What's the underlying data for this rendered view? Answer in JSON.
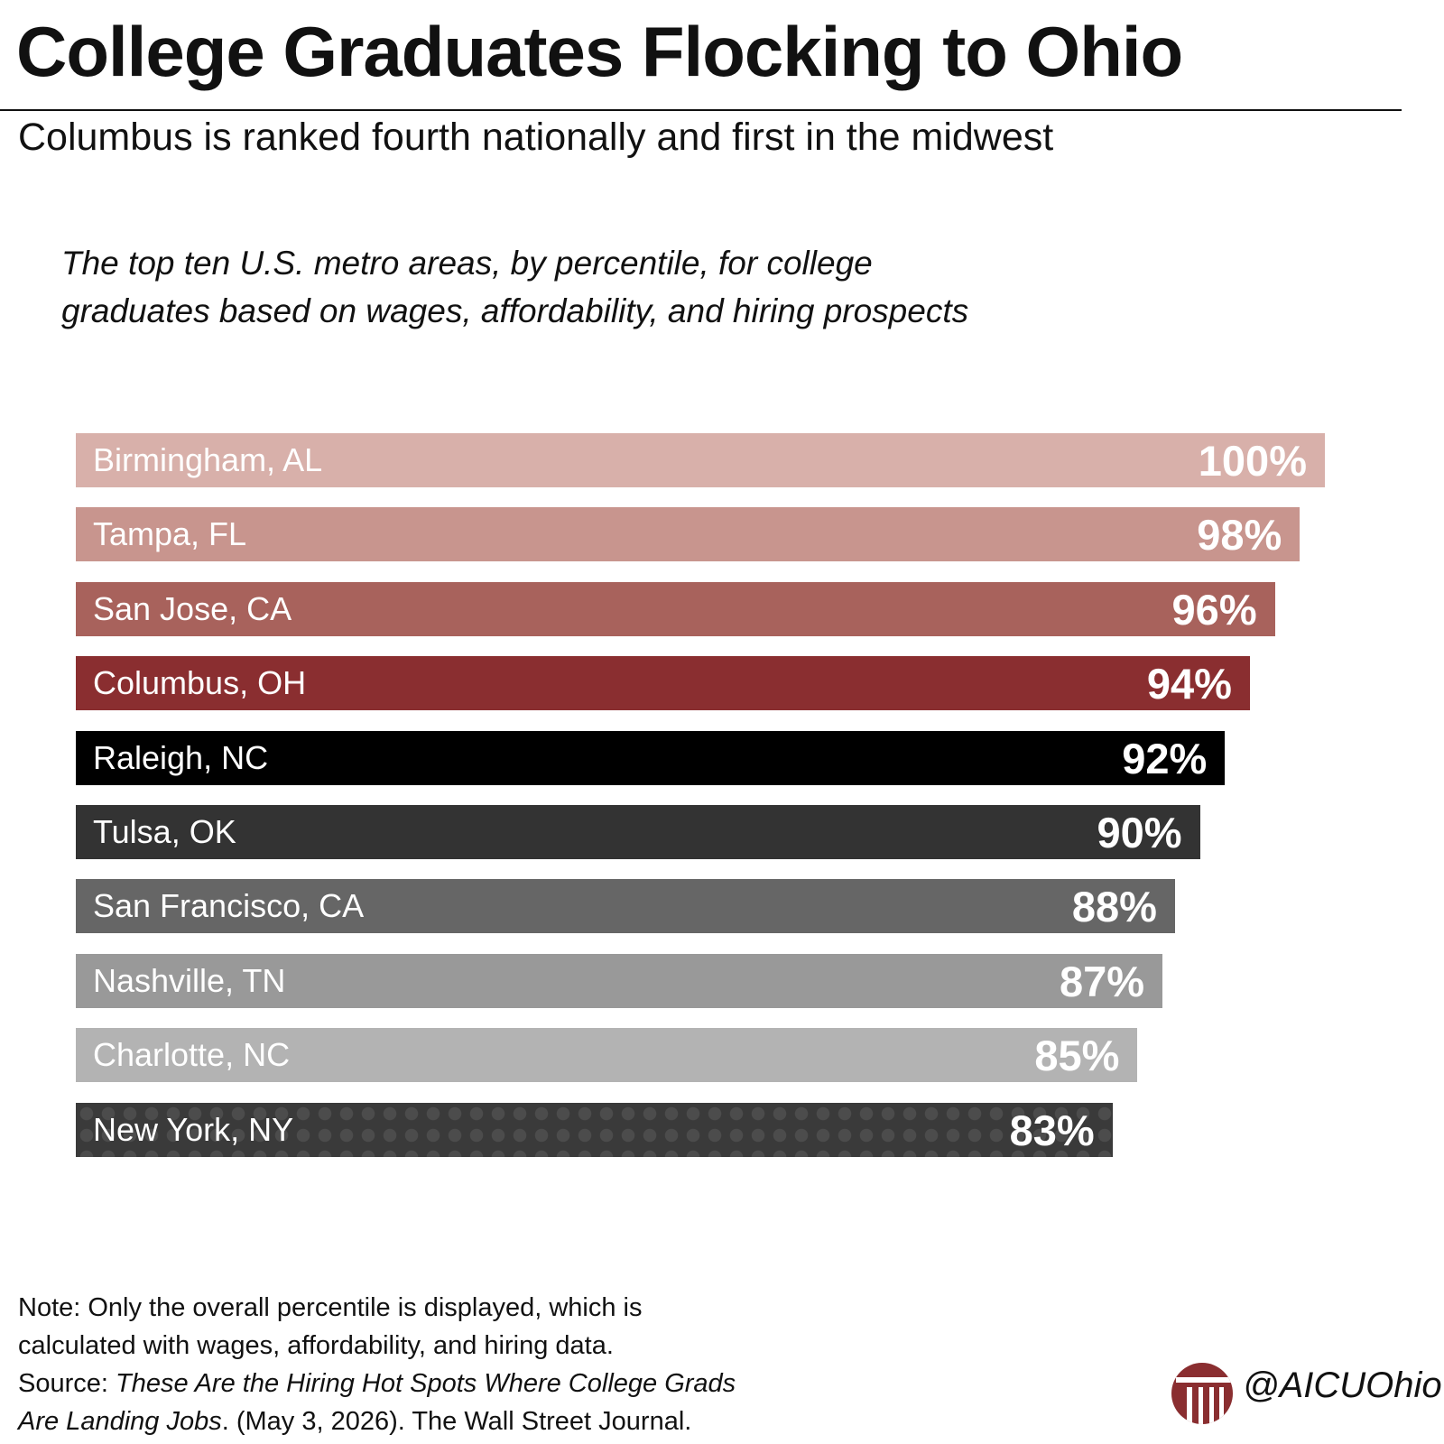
{
  "header": {
    "title": "College Graduates Flocking to Ohio",
    "subtitle": "Columbus is ranked fourth nationally and first in the midwest"
  },
  "chart_data": {
    "type": "bar",
    "orientation": "horizontal",
    "title": "College Graduates Flocking to Ohio",
    "subtitle": "Columbus is ranked fourth nationally and first in the midwest",
    "description": [
      "The top ten U.S. metro areas, by percentile, for college",
      "graduates based on wages, affordability, and hiring prospects"
    ],
    "xlabel": "",
    "ylabel": "",
    "xlim": [
      0,
      100
    ],
    "grid": false,
    "legend": "none",
    "unit": "%",
    "categories": [
      "Birmingham, AL",
      "Tampa, FL",
      "San Jose, CA",
      "Columbus, OH",
      "Raleigh, NC",
      "Tulsa, OK",
      "San Francisco, CA",
      "Nashville, TN",
      "Charlotte, NC",
      "New York, NY"
    ],
    "values": [
      100,
      98,
      96,
      94,
      92,
      90,
      88,
      87,
      85,
      83
    ],
    "value_labels": [
      "100%",
      "98%",
      "96%",
      "94%",
      "92%",
      "90%",
      "88%",
      "87%",
      "85%",
      "83%"
    ],
    "colors": [
      "#d8b0aa",
      "#c8958e",
      "#a8625c",
      "#8a2e30",
      "#000000",
      "#333333",
      "#666666",
      "#999999",
      "#b3b3b3",
      "#3a3a3a"
    ],
    "patterned": [
      false,
      false,
      false,
      false,
      false,
      false,
      false,
      false,
      false,
      true
    ]
  },
  "footer": {
    "note_line1": "Note: Only the overall percentile is displayed, which is",
    "note_line2": "calculated with wages, affordability, and hiring data.",
    "source_prefix": "Source: ",
    "source_title_part1": "These Are the Hiring Hot Spots Where College Grads",
    "source_title_part2": "Are Landing Jobs",
    "source_suffix": ". (May 3, 2026). The Wall Street Journal.",
    "handle": "@AICUOhio"
  },
  "logo": {
    "icon": "aicu-column-logo",
    "color": "#8a2e30"
  }
}
